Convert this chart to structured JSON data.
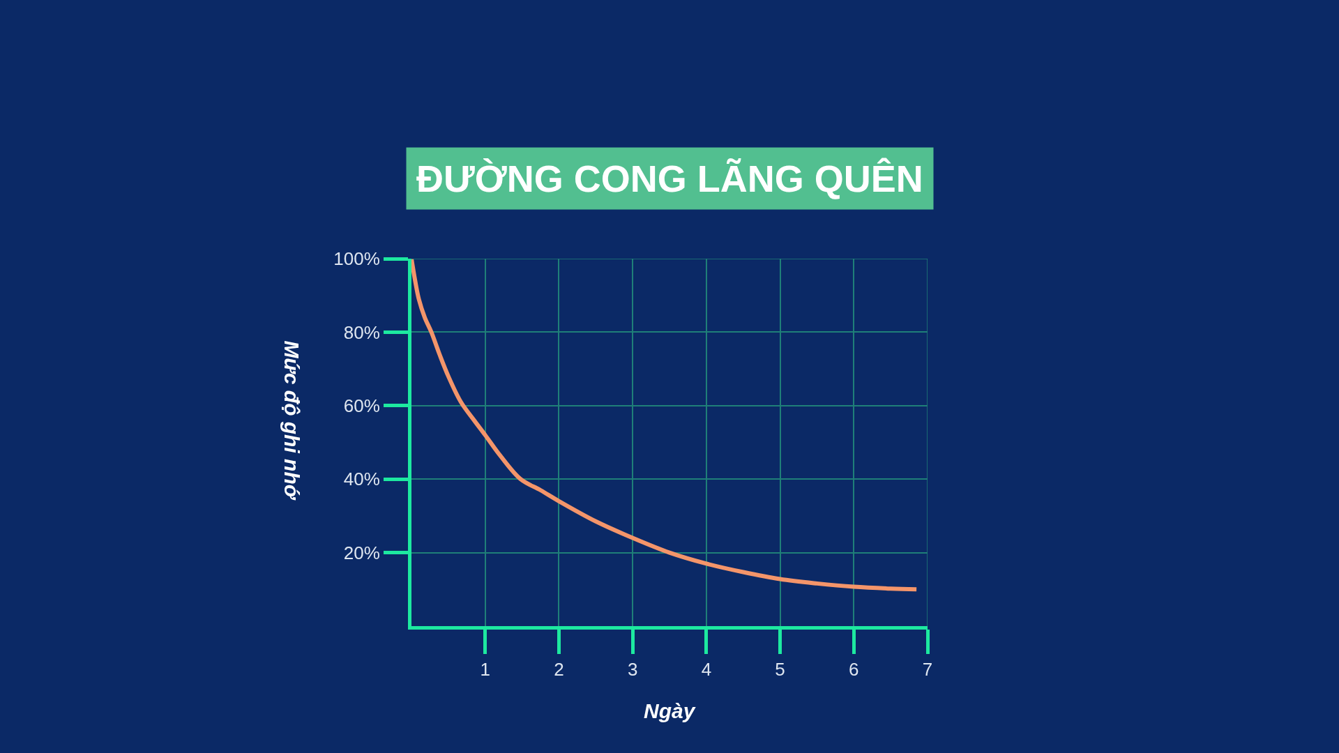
{
  "chart_data": {
    "type": "line",
    "title": "ĐƯỜNG CONG LÃNG QUÊN",
    "xlabel": "Ngày",
    "ylabel": "Mức độ ghi nhớ",
    "x": [
      0,
      0.05,
      0.1,
      0.18,
      0.27,
      0.38,
      0.5,
      0.67,
      0.85,
      1,
      1.2,
      1.48,
      1.75,
      2,
      2.5,
      3,
      3.5,
      4,
      4.5,
      5,
      5.5,
      6,
      6.5,
      6.85
    ],
    "series": [
      {
        "color": "#f4956a",
        "values": [
          100,
          94,
          89,
          84,
          80,
          74,
          68,
          61,
          56,
          52,
          46.5,
          40,
          37,
          34,
          28.5,
          24,
          20,
          17,
          14.7,
          12.8,
          11.6,
          10.7,
          10.2,
          10
        ]
      }
    ],
    "xlim": [
      0,
      7
    ],
    "ylim": [
      0,
      100
    ],
    "xticks": [
      1,
      2,
      3,
      4,
      5,
      6,
      7
    ],
    "yticks": [
      {
        "value": 20,
        "label": "20%"
      },
      {
        "value": 40,
        "label": "40%"
      },
      {
        "value": 60,
        "label": "60%"
      },
      {
        "value": 80,
        "label": "80%"
      },
      {
        "value": 100,
        "label": "100%"
      }
    ],
    "grid": true,
    "marker": "none",
    "line_style": "solid"
  }
}
